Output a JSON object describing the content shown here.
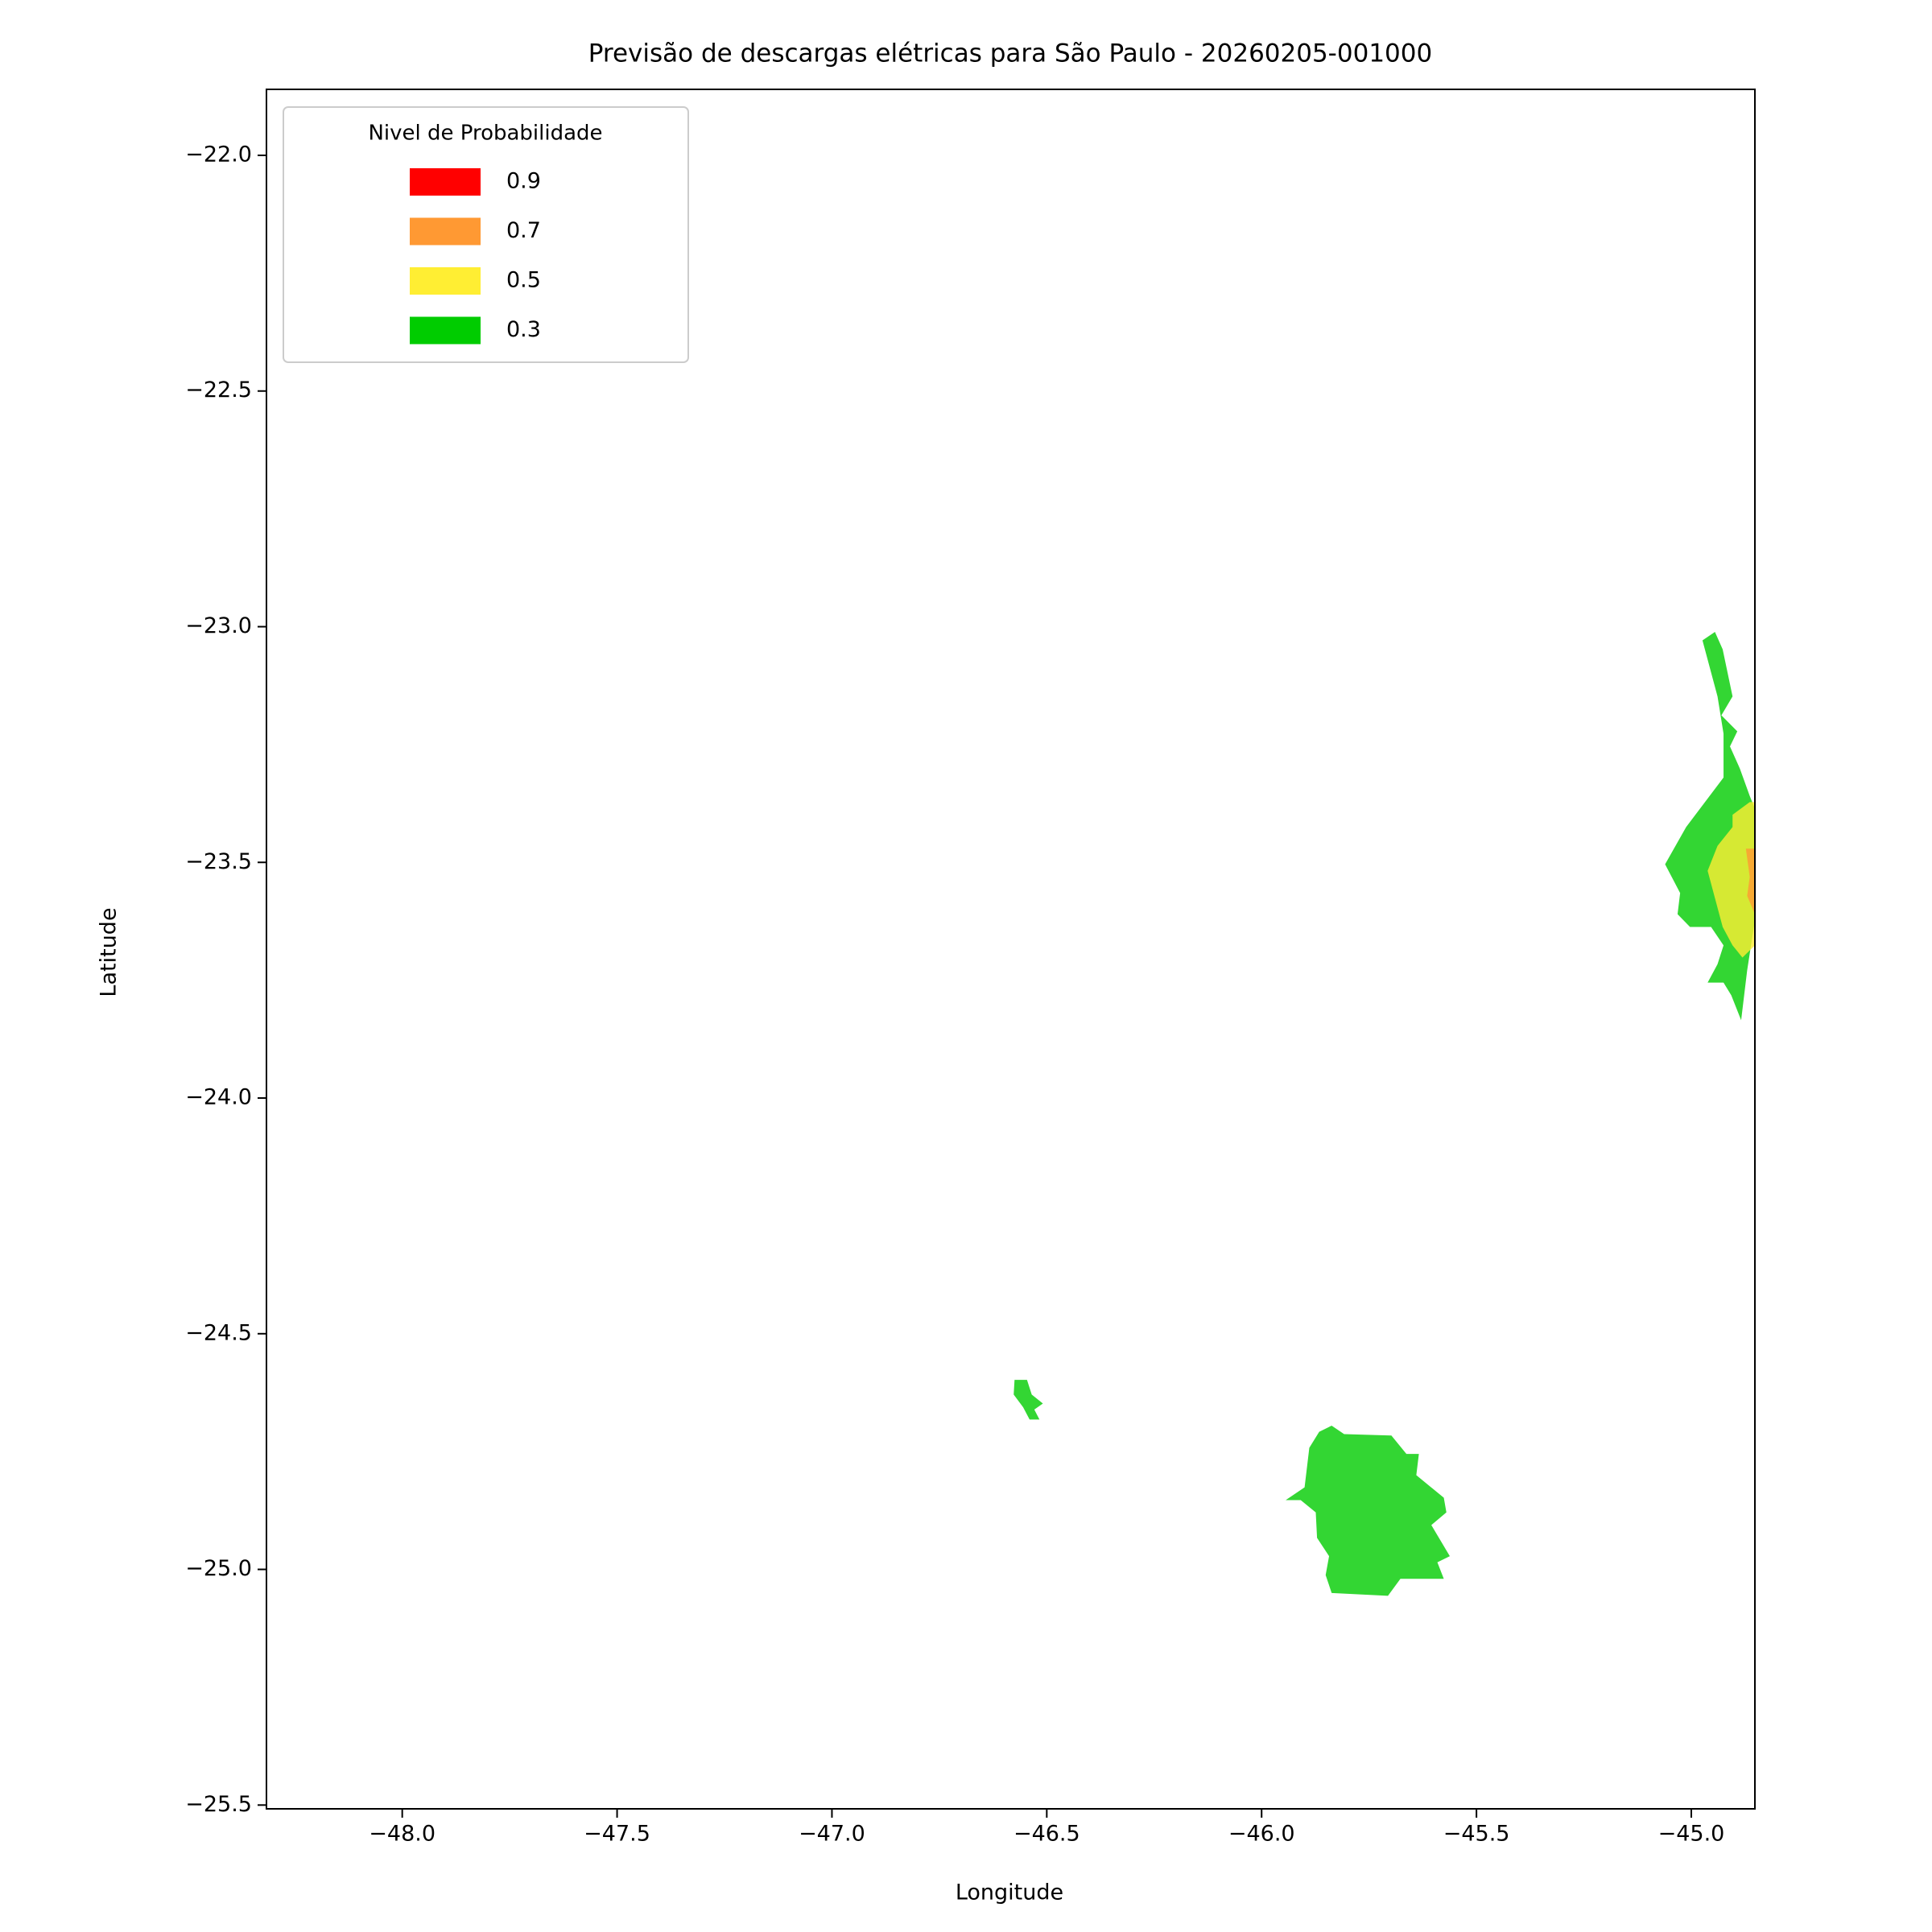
{
  "chart_data": {
    "type": "filled-contour-map",
    "title": "Previsão de descargas elétricas para São Paulo - 20260205-001000",
    "x_label": "Longitude",
    "y_label": "Latitude",
    "xlim": [
      -48.316,
      -44.852
    ],
    "ylim": [
      -25.508,
      -21.86
    ],
    "xticks": [
      {
        "value": -48,
        "label": "−48.0"
      },
      {
        "value": -47.5,
        "label": "−47.5"
      },
      {
        "value": -47,
        "label": "−47.0"
      },
      {
        "value": -46.5,
        "label": "−46.5"
      },
      {
        "value": -46,
        "label": "−46.0"
      },
      {
        "value": -45.5,
        "label": "−45.5"
      },
      {
        "value": -45,
        "label": "−45.0"
      }
    ],
    "yticks": [
      {
        "value": -22,
        "label": "−22.0"
      },
      {
        "value": -22.5,
        "label": "−22.5"
      },
      {
        "value": -23,
        "label": "−23.0"
      },
      {
        "value": -23.5,
        "label": "−23.5"
      },
      {
        "value": -24,
        "label": "−24.0"
      },
      {
        "value": -24.5,
        "label": "−24.5"
      },
      {
        "value": -25,
        "label": "−25.0"
      },
      {
        "value": -25.5,
        "label": "−25.5"
      }
    ],
    "legend_title": "Nivel de Probabilidade",
    "legend_position": "upper left",
    "fill_opacity": 0.8,
    "series": [
      {
        "name": "0.9",
        "color": "#ff0000"
      },
      {
        "name": "0.7",
        "color": "#ff9933"
      },
      {
        "name": "0.5",
        "color": "#ffee33"
      },
      {
        "name": "0.3",
        "color": "#00cc00"
      }
    ],
    "regions": [
      {
        "level": "0.3",
        "x": [
          -44.974,
          -44.945,
          -44.927,
          -44.904,
          -44.93,
          -44.893,
          -44.91,
          -44.887,
          -44.864,
          -44.852,
          -44.852,
          -44.87,
          -44.884,
          -44.907,
          -44.925,
          -44.962,
          -44.939,
          -44.925,
          -44.954,
          -45.003,
          -45.032,
          -45.026,
          -45.061,
          -45.012,
          -44.925,
          -44.925,
          -44.939
        ],
        "y": [
          -23.029,
          -23.011,
          -23.048,
          -23.148,
          -23.188,
          -23.222,
          -23.254,
          -23.301,
          -23.359,
          -23.386,
          -23.623,
          -23.729,
          -23.835,
          -23.782,
          -23.755,
          -23.755,
          -23.716,
          -23.676,
          -23.637,
          -23.637,
          -23.61,
          -23.565,
          -23.504,
          -23.425,
          -23.32,
          -23.227,
          -23.148
        ]
      },
      {
        "level": "0.5",
        "x": [
          -44.904,
          -44.864,
          -44.852,
          -44.852,
          -44.881,
          -44.904,
          -44.927,
          -44.962,
          -44.939,
          -44.904
        ],
        "y": [
          -23.399,
          -23.372,
          -23.372,
          -23.676,
          -23.702,
          -23.676,
          -23.637,
          -23.518,
          -23.465,
          -23.425
        ]
      },
      {
        "level": "0.7",
        "x": [
          -44.873,
          -44.852,
          -44.852,
          -44.87,
          -44.864
        ],
        "y": [
          -23.471,
          -23.471,
          -23.61,
          -23.571,
          -23.531
        ]
      },
      {
        "level": "0.3",
        "x": [
          -46.575,
          -46.546,
          -46.535,
          -46.509,
          -46.529,
          -46.517,
          -46.54,
          -46.555,
          -46.577
        ],
        "y": [
          -24.598,
          -24.598,
          -24.629,
          -24.648,
          -24.661,
          -24.682,
          -24.682,
          -24.656,
          -24.629
        ]
      },
      {
        "level": "0.3",
        "x": [
          -45.837,
          -45.808,
          -45.698,
          -45.663,
          -45.634,
          -45.64,
          -45.576,
          -45.57,
          -45.605,
          -45.562,
          -45.591,
          -45.576,
          -45.677,
          -45.706,
          -45.837,
          -45.851,
          -45.843,
          -45.871,
          -45.874,
          -45.909,
          -45.944,
          -45.9,
          -45.889,
          -45.866
        ],
        "y": [
          -24.695,
          -24.713,
          -24.716,
          -24.755,
          -24.755,
          -24.8,
          -24.848,
          -24.879,
          -24.906,
          -24.972,
          -24.985,
          -25.02,
          -25.02,
          -25.056,
          -25.05,
          -25.012,
          -24.972,
          -24.933,
          -24.879,
          -24.853,
          -24.853,
          -24.826,
          -24.742,
          -24.708
        ]
      }
    ]
  }
}
